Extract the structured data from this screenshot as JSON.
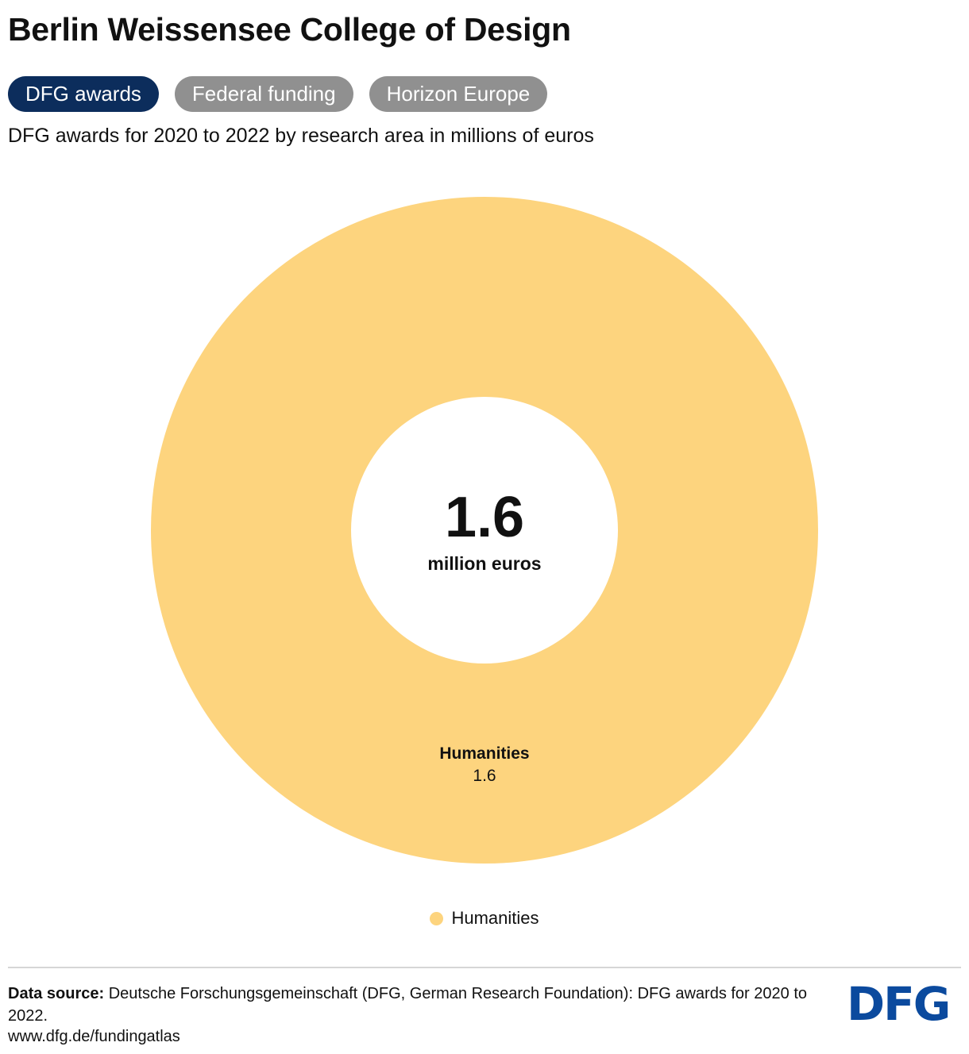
{
  "header": {
    "title": "Berlin Weissensee College of Design"
  },
  "tabs": [
    {
      "label": "DFG awards",
      "active": true
    },
    {
      "label": "Federal funding",
      "active": false
    },
    {
      "label": "Horizon Europe",
      "active": false
    }
  ],
  "colors": {
    "tab_active": "#0c2d5c",
    "tab_inactive": "#909090",
    "humanities": "#fdd47e",
    "logo": "#0b4a9e"
  },
  "chart_data": {
    "type": "pie",
    "variant": "donut",
    "title": "DFG awards for 2020 to 2022 by research area in millions of euros",
    "center_total": "1.6",
    "center_unit": "million euros",
    "slices": [
      {
        "label": "Humanities",
        "value": 1.6,
        "color": "#fdd47e"
      }
    ],
    "legend": {
      "position": "bottom-center",
      "entries": [
        "Humanities"
      ]
    }
  },
  "footer": {
    "source_label": "Data source:",
    "source_text": "Deutsche Forschungsgemeinschaft (DFG, German Research Foundation): DFG awards for 2020 to 2022.",
    "url": "www.dfg.de/fundingatlas",
    "logo_text": "DFG"
  }
}
